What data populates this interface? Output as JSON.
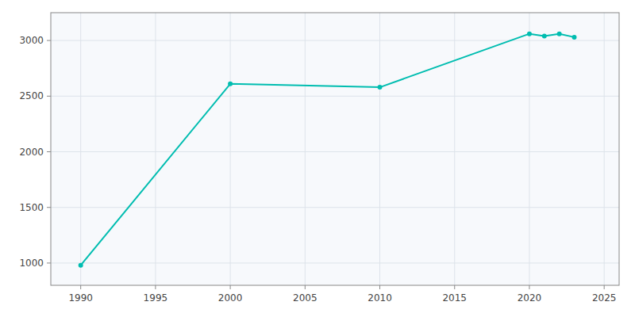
{
  "chart_data": {
    "type": "line",
    "x": [
      1990,
      2000,
      2010,
      2020,
      2021,
      2022,
      2023
    ],
    "values": [
      980,
      2610,
      2580,
      3060,
      3040,
      3060,
      3030
    ],
    "color": "#00bdb0",
    "marker": "circle",
    "xlim": [
      1988,
      2026
    ],
    "ylim": [
      800,
      3250
    ],
    "xticks": [
      1990,
      1995,
      2000,
      2005,
      2010,
      2015,
      2020,
      2025
    ],
    "yticks": [
      1000,
      1500,
      2000,
      2500,
      3000
    ],
    "grid": true
  }
}
